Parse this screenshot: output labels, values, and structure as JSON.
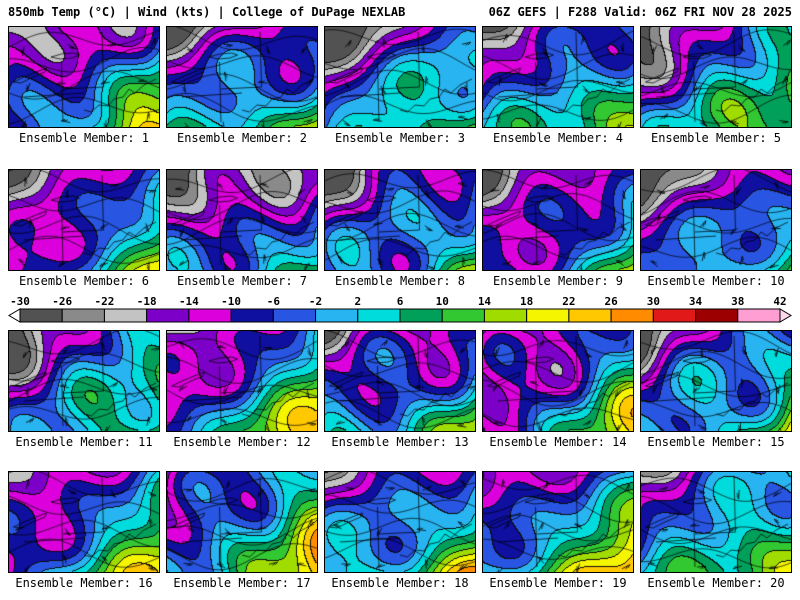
{
  "header": {
    "left": "850mb Temp (°C) | Wind (kts) | College of DuPage NEXLAB",
    "right": "06Z GEFS | F288 Valid: 06Z FRI NOV 28 2025"
  },
  "panels": [
    {
      "label": "Ensemble Member: 1"
    },
    {
      "label": "Ensemble Member: 2"
    },
    {
      "label": "Ensemble Member: 3"
    },
    {
      "label": "Ensemble Member: 4"
    },
    {
      "label": "Ensemble Member: 5"
    },
    {
      "label": "Ensemble Member: 6"
    },
    {
      "label": "Ensemble Member: 7"
    },
    {
      "label": "Ensemble Member: 8"
    },
    {
      "label": "Ensemble Member: 9"
    },
    {
      "label": "Ensemble Member: 10"
    },
    {
      "label": "Ensemble Member: 11"
    },
    {
      "label": "Ensemble Member: 12"
    },
    {
      "label": "Ensemble Member: 13"
    },
    {
      "label": "Ensemble Member: 14"
    },
    {
      "label": "Ensemble Member: 15"
    },
    {
      "label": "Ensemble Member: 16"
    },
    {
      "label": "Ensemble Member: 17"
    },
    {
      "label": "Ensemble Member: 18"
    },
    {
      "label": "Ensemble Member: 19"
    },
    {
      "label": "Ensemble Member: 20"
    }
  ],
  "colorbar": {
    "ticks": [
      -30,
      -26,
      -22,
      -18,
      -14,
      -10,
      -6,
      -2,
      2,
      6,
      10,
      14,
      18,
      22,
      26,
      30,
      34,
      38,
      42
    ],
    "colors": [
      "#525252",
      "#8a8a8a",
      "#c3c3c3",
      "#7d00c8",
      "#dc00dc",
      "#0f0fa0",
      "#2855e1",
      "#28b4f0",
      "#00dcdc",
      "#00a05a",
      "#32c832",
      "#a0dc00",
      "#f5f500",
      "#ffc800",
      "#ff8c00",
      "#e11919",
      "#9c0000",
      "#ff9ed2"
    ],
    "left_arrow_color": "#ffffff",
    "right_arrow_color": "#ffd7ec"
  },
  "chart_data": {
    "type": "heatmap",
    "title": "850mb Temp (°C) | Wind (kts)",
    "model_info": {
      "model": "GEFS",
      "cycle": "06Z",
      "forecast_hour": "F288",
      "valid": "06Z FRI NOV 28 2025"
    },
    "panel_labels": [
      "Ensemble Member: 1",
      "Ensemble Member: 2",
      "Ensemble Member: 3",
      "Ensemble Member: 4",
      "Ensemble Member: 5",
      "Ensemble Member: 6",
      "Ensemble Member: 7",
      "Ensemble Member: 8",
      "Ensemble Member: 9",
      "Ensemble Member: 10",
      "Ensemble Member: 11",
      "Ensemble Member: 12",
      "Ensemble Member: 13",
      "Ensemble Member: 14",
      "Ensemble Member: 15",
      "Ensemble Member: 16",
      "Ensemble Member: 17",
      "Ensemble Member: 18",
      "Ensemble Member: 19",
      "Ensemble Member: 20"
    ],
    "colorbar_units": "°C",
    "colorbar_ticks": [
      -30,
      -26,
      -22,
      -18,
      -14,
      -10,
      -6,
      -2,
      2,
      6,
      10,
      14,
      18,
      22,
      26,
      30,
      34,
      38,
      42
    ],
    "colorbar_colors": [
      "#525252",
      "#8a8a8a",
      "#c3c3c3",
      "#7d00c8",
      "#dc00dc",
      "#0f0fa0",
      "#2855e1",
      "#28b4f0",
      "#00dcdc",
      "#00a05a",
      "#32c832",
      "#a0dc00",
      "#f5f500",
      "#ffc800",
      "#ff8c00",
      "#e11919",
      "#9c0000",
      "#ff9ed2"
    ],
    "legend_position": "middle, between ensemble member rows 6-10 and 11-15",
    "grid": "4 rows x 5 columns of ensemble member maps over the northeastern United States / Great Lakes region"
  }
}
